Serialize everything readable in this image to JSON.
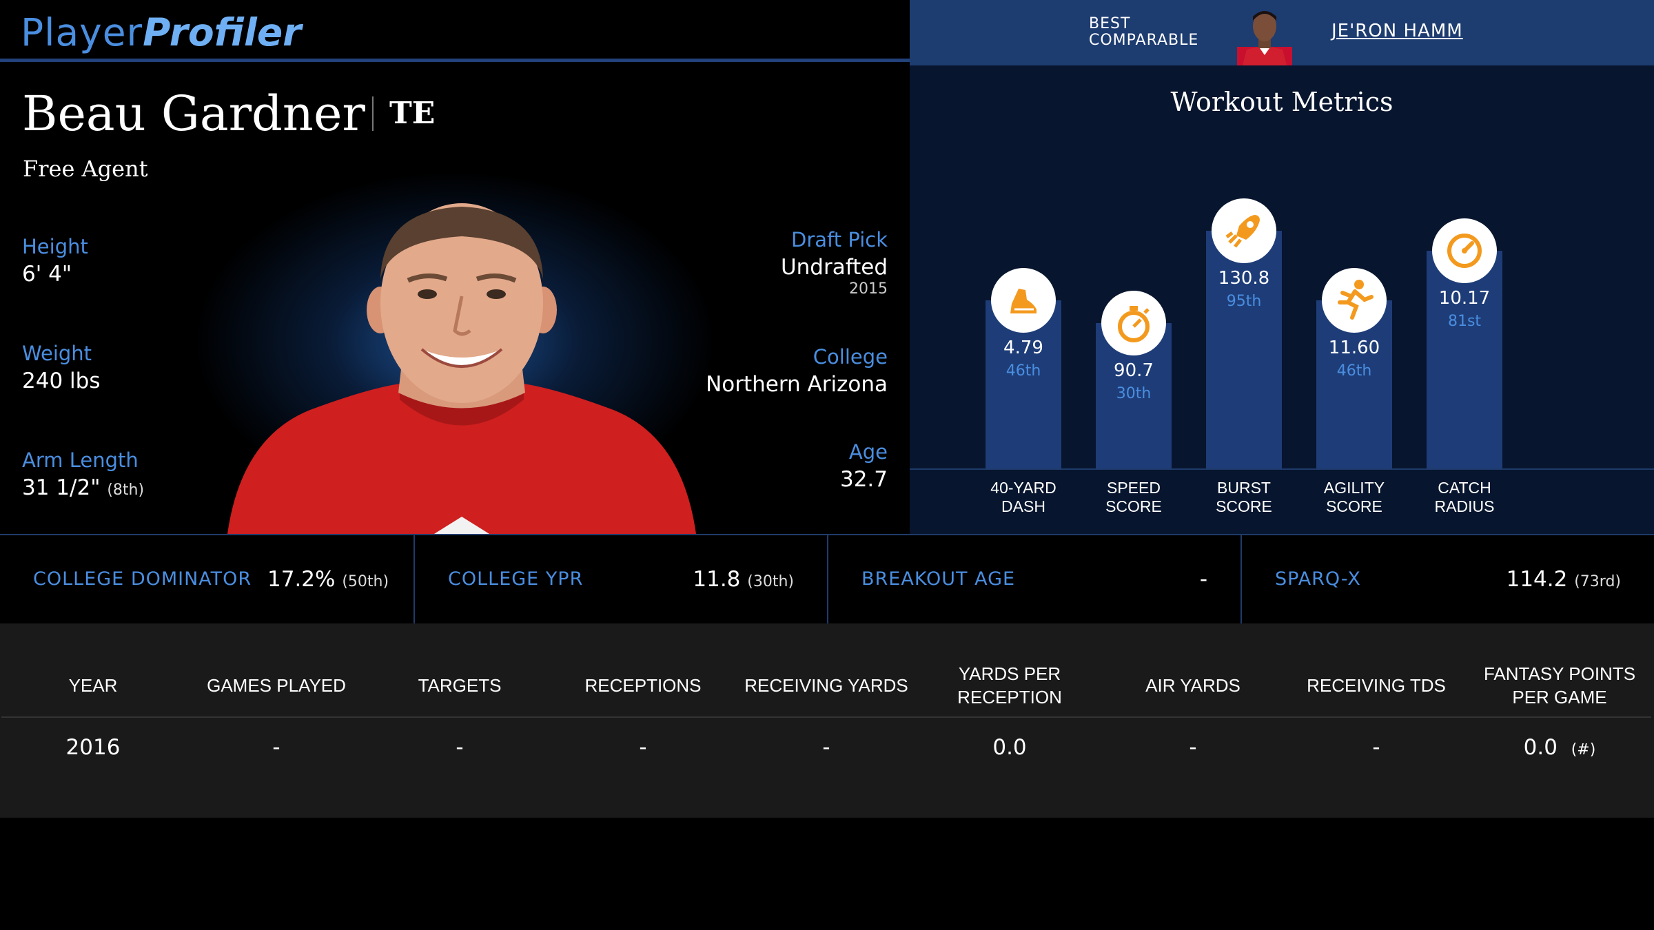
{
  "brand": {
    "word1": "Player",
    "word2": "Profiler"
  },
  "comparable": {
    "label_line1": "BEST",
    "label_line2": "COMPARABLE",
    "name": "JE'RON HAMM"
  },
  "player": {
    "name": "Beau Gardner",
    "position": "TE",
    "team": "Free Agent",
    "height_label": "Height",
    "height": "6' 4\"",
    "weight_label": "Weight",
    "weight": "240 lbs",
    "arm_label": "Arm Length",
    "arm": "31 1/2\"",
    "arm_rank": "(8th)",
    "draft_label": "Draft Pick",
    "draft": "Undrafted",
    "draft_year": "2015",
    "college_label": "College",
    "college": "Northern Arizona",
    "age_label": "Age",
    "age": "32.7"
  },
  "workout": {
    "title": "Workout Metrics",
    "metrics": [
      {
        "label1": "40-YARD",
        "label2": "DASH",
        "value": "4.79",
        "percentile": "46th",
        "pct_num": 46,
        "icon": "shoe-icon"
      },
      {
        "label1": "SPEED",
        "label2": "SCORE",
        "value": "90.7",
        "percentile": "30th",
        "pct_num": 30,
        "icon": "stopwatch-icon"
      },
      {
        "label1": "BURST",
        "label2": "SCORE",
        "value": "130.8",
        "percentile": "95th",
        "pct_num": 95,
        "icon": "rocket-icon"
      },
      {
        "label1": "AGILITY",
        "label2": "SCORE",
        "value": "11.60",
        "percentile": "46th",
        "pct_num": 46,
        "icon": "runner-icon"
      },
      {
        "label1": "CATCH",
        "label2": "RADIUS",
        "value": "10.17",
        "percentile": "81st",
        "pct_num": 81,
        "icon": "gauge-icon"
      }
    ]
  },
  "stats": [
    {
      "label": "COLLEGE DOMINATOR",
      "value": "17.2%",
      "rank": "(50th)"
    },
    {
      "label": "COLLEGE YPR",
      "value": "11.8",
      "rank": "(30th)"
    },
    {
      "label": "BREAKOUT AGE",
      "value": "-",
      "rank": ""
    },
    {
      "label": "SPARQ-X",
      "value": "114.2",
      "rank": "(73rd)"
    }
  ],
  "season_table": {
    "headers": [
      "YEAR",
      "GAMES PLAYED",
      "TARGETS",
      "RECEPTIONS",
      "RECEIVING YARDS",
      "YARDS PER RECEPTION",
      "AIR YARDS",
      "RECEIVING TDS",
      "FANTASY POINTS PER GAME"
    ],
    "row": [
      "2016",
      "-",
      "-",
      "-",
      "-",
      "0.0",
      "-",
      "-",
      "0.0"
    ],
    "row_note": "(#)"
  },
  "colors": {
    "accent": "#4a8ee0",
    "bar": "#1e3d78",
    "icon": "#f39a1e",
    "header_bar": "#1d3c70"
  }
}
